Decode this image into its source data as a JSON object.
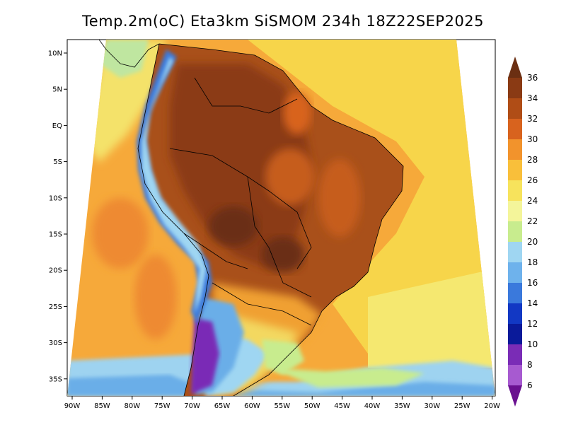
{
  "title": "Temp.2m(oC) Eta3km SiSMOM 234h 18Z22SEP2025",
  "lat_labels": [
    "10N",
    "5N",
    "EQ",
    "5S",
    "10S",
    "15S",
    "20S",
    "25S",
    "30S",
    "35S"
  ],
  "lon_labels": [
    "90W",
    "85W",
    "80W",
    "75W",
    "70W",
    "65W",
    "60W",
    "55W",
    "50W",
    "45W",
    "40W",
    "35W",
    "30W",
    "25W",
    "20W"
  ],
  "colorbar": {
    "labels": [
      "36",
      "34",
      "32",
      "30",
      "28",
      "26",
      "24",
      "22",
      "20",
      "18",
      "16",
      "14",
      "12",
      "10",
      "8",
      "6"
    ],
    "colors": [
      "#6b2f12",
      "#8a3a14",
      "#b04d16",
      "#d8631e",
      "#f2932c",
      "#f9bf3a",
      "#f7e35c",
      "#f4f59a",
      "#c8ec8e",
      "#9fd6f2",
      "#6eb2ec",
      "#3a79dc",
      "#1238c4",
      "#0a1a9a",
      "#7a2cb6",
      "#a75ad0",
      "#6a1090"
    ]
  },
  "chart_data": {
    "type": "heatmap",
    "variable": "Temp.2m(oC)",
    "model": "Eta3km SiSMOM",
    "forecast_hour": "234h",
    "valid_time": "18Z22SEP2025",
    "lat_range": [
      "36S",
      "10N"
    ],
    "lon_range": [
      "90W",
      "20W"
    ],
    "color_levels": [
      6,
      8,
      10,
      12,
      14,
      16,
      18,
      20,
      22,
      24,
      26,
      28,
      30,
      32,
      34,
      36
    ]
  }
}
